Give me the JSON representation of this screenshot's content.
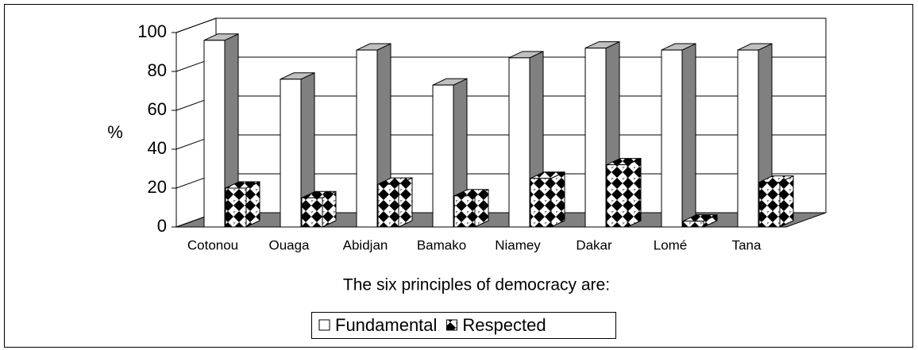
{
  "chart_data": {
    "type": "bar3d",
    "categories": [
      "Cotonou",
      "Ouaga",
      "Abidjan",
      "Bamako",
      "Niamey",
      "Dakar",
      "Lomé",
      "Tana"
    ],
    "series": [
      {
        "name": "Fundamental",
        "color": "#ffffff",
        "values": [
          96,
          76,
          91,
          73,
          87,
          92,
          91,
          91
        ]
      },
      {
        "name": "Respected",
        "color": "#000000",
        "values": [
          20,
          15,
          22,
          16,
          25,
          32,
          3,
          23
        ]
      }
    ],
    "y_label": "%",
    "x_label": "The six principles of democracy are:",
    "ylim": [
      0,
      100
    ],
    "yticks": [
      0,
      20,
      40,
      60,
      80,
      100
    ],
    "grid": true,
    "legend": "bottom"
  }
}
